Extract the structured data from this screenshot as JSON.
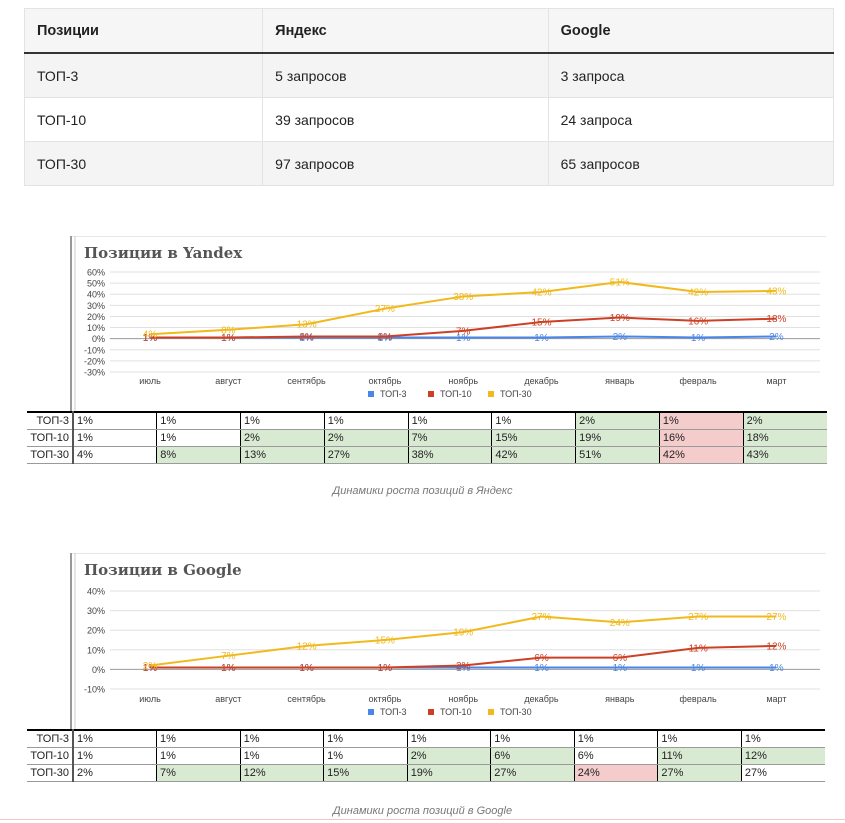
{
  "summary": {
    "headers": [
      "Позиции",
      "Яндекс",
      "Google"
    ],
    "rows": [
      [
        "ТОП-3",
        "5 запросов",
        "3 запроса"
      ],
      [
        "ТОП-10",
        "39 запросов",
        "24 запроса"
      ],
      [
        "ТОП-30",
        "97 запросов",
        "65 запросов"
      ]
    ]
  },
  "chart_data": [
    {
      "type": "line",
      "title": "Позиции в Yandex",
      "categories": [
        "июль",
        "август",
        "сентябрь",
        "октябрь",
        "ноябрь",
        "декабрь",
        "январь",
        "февраль",
        "март"
      ],
      "ylim": [
        -30,
        60
      ],
      "yticks": [
        "60%",
        "50%",
        "40%",
        "30%",
        "20%",
        "10%",
        "0%",
        "-10%",
        "-20%",
        "-30%"
      ],
      "series": [
        {
          "name": "ТОП-3",
          "color": "#4a86e8",
          "values": [
            1,
            1,
            1,
            1,
            1,
            1,
            2,
            1,
            2
          ],
          "labels": [
            "1%",
            "1%",
            "1%",
            "1%",
            "1%",
            "1%",
            "2%",
            "1%",
            "2%"
          ]
        },
        {
          "name": "ТОП-10",
          "color": "#cc4125",
          "values": [
            1,
            1,
            2,
            2,
            7,
            15,
            19,
            16,
            18
          ],
          "labels": [
            "1%",
            "1%",
            "2%",
            "2%",
            "7%",
            "15%",
            "19%",
            "16%",
            "18%"
          ]
        },
        {
          "name": "ТОП-30",
          "color": "#f1b91c",
          "values": [
            4,
            8,
            13,
            27,
            38,
            42,
            51,
            42,
            43
          ],
          "labels": [
            "4%",
            "8%",
            "13%",
            "27%",
            "38%",
            "42%",
            "51%",
            "42%",
            "43%"
          ]
        }
      ],
      "table_rows": [
        {
          "label": "ТОП-3",
          "cells": [
            "1%",
            "1%",
            "1%",
            "1%",
            "1%",
            "1%",
            "2%",
            "1%",
            "2%"
          ],
          "shade": [
            "",
            "",
            "",
            "",
            "",
            "",
            "g",
            "r",
            "g"
          ]
        },
        {
          "label": "ТОП-10",
          "cells": [
            "1%",
            "1%",
            "2%",
            "2%",
            "7%",
            "15%",
            "19%",
            "16%",
            "18%"
          ],
          "shade": [
            "",
            "",
            "g",
            "g",
            "g",
            "g",
            "g",
            "r",
            "g"
          ]
        },
        {
          "label": "ТОП-30",
          "cells": [
            "4%",
            "8%",
            "13%",
            "27%",
            "38%",
            "42%",
            "51%",
            "42%",
            "43%"
          ],
          "shade": [
            "",
            "g",
            "g",
            "g",
            "g",
            "g",
            "g",
            "r",
            "g"
          ]
        }
      ],
      "caption": "Динамики роста позиций в Яндекс"
    },
    {
      "type": "line",
      "title": "Позиции в Google",
      "categories": [
        "июль",
        "август",
        "сентябрь",
        "октябрь",
        "ноябрь",
        "декабрь",
        "январь",
        "февраль",
        "март"
      ],
      "ylim": [
        -10,
        40
      ],
      "yticks": [
        "40%",
        "30%",
        "20%",
        "10%",
        "0%",
        "-10%"
      ],
      "series": [
        {
          "name": "ТОП-3",
          "color": "#4a86e8",
          "values": [
            1,
            1,
            1,
            1,
            1,
            1,
            1,
            1,
            1
          ],
          "labels": [
            "1%",
            "1%",
            "1%",
            "1%",
            "1%",
            "1%",
            "1%",
            "1%",
            "1%"
          ]
        },
        {
          "name": "ТОП-10",
          "color": "#cc4125",
          "values": [
            1,
            1,
            1,
            1,
            2,
            6,
            6,
            11,
            12
          ],
          "labels": [
            "1%",
            "1%",
            "1%",
            "1%",
            "2%",
            "6%",
            "6%",
            "11%",
            "12%"
          ]
        },
        {
          "name": "ТОП-30",
          "color": "#f1b91c",
          "values": [
            2,
            7,
            12,
            15,
            19,
            27,
            24,
            27,
            27
          ],
          "labels": [
            "2%",
            "7%",
            "12%",
            "15%",
            "19%",
            "27%",
            "24%",
            "27%",
            "27%"
          ]
        }
      ],
      "table_rows": [
        {
          "label": "ТОП-3",
          "cells": [
            "1%",
            "1%",
            "1%",
            "1%",
            "1%",
            "1%",
            "1%",
            "1%",
            "1%"
          ],
          "shade": [
            "",
            "",
            "",
            "",
            "",
            "",
            "",
            "",
            ""
          ]
        },
        {
          "label": "ТОП-10",
          "cells": [
            "1%",
            "1%",
            "1%",
            "1%",
            "2%",
            "6%",
            "6%",
            "11%",
            "12%"
          ],
          "shade": [
            "",
            "",
            "",
            "",
            "g",
            "g",
            "",
            "g",
            "g"
          ]
        },
        {
          "label": "ТОП-30",
          "cells": [
            "2%",
            "7%",
            "12%",
            "15%",
            "19%",
            "27%",
            "24%",
            "27%",
            "27%"
          ],
          "shade": [
            "",
            "g",
            "g",
            "g",
            "g",
            "g",
            "r",
            "g",
            ""
          ]
        }
      ],
      "caption": "Динамики роста позиций в Google"
    }
  ]
}
